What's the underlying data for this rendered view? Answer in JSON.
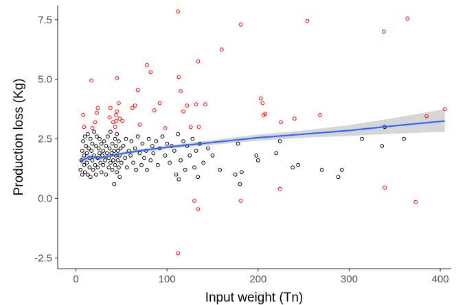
{
  "chart_data": {
    "type": "scatter",
    "title": "",
    "xlabel": "Input weight (Tn)",
    "ylabel": "Production loss (Kg)",
    "xlim": [
      -20,
      412
    ],
    "ylim": [
      -2.95,
      8.1
    ],
    "x_ticks": [
      0,
      100,
      200,
      300,
      400
    ],
    "x_tick_labels": [
      "0",
      "100",
      "200",
      "300",
      "400"
    ],
    "y_ticks": [
      -2.5,
      0.0,
      2.5,
      5.0,
      7.5
    ],
    "y_tick_labels": [
      "-2.5",
      "0.0",
      "2.5",
      "5.0",
      "7.5"
    ],
    "grid": false,
    "legend": "none",
    "colors": {
      "normal_points": "#000000",
      "outlier_points": "#ff0000",
      "trend_line": "#3366ff",
      "confidence_band": "#c8c8c8",
      "axis": "#333333"
    },
    "series": [
      {
        "role": "normal",
        "points": [
          [
            5,
            1.2
          ],
          [
            6,
            1.6
          ],
          [
            7,
            2.0
          ],
          [
            7,
            1.0
          ],
          [
            8,
            2.4
          ],
          [
            9,
            1.4
          ],
          [
            9,
            1.8
          ],
          [
            10,
            2.6
          ],
          [
            10,
            1.1
          ],
          [
            11,
            2.2
          ],
          [
            12,
            1.5
          ],
          [
            12,
            1.9
          ],
          [
            13,
            2.7
          ],
          [
            13,
            1.0
          ],
          [
            14,
            2.1
          ],
          [
            15,
            1.3
          ],
          [
            15,
            1.7
          ],
          [
            16,
            2.5
          ],
          [
            16,
            0.9
          ],
          [
            17,
            2.0
          ],
          [
            18,
            1.6
          ],
          [
            18,
            2.3
          ],
          [
            19,
            1.2
          ],
          [
            20,
            2.8
          ],
          [
            20,
            1.8
          ],
          [
            21,
            1.4
          ],
          [
            22,
            2.2
          ],
          [
            22,
            1.0
          ],
          [
            23,
            2.6
          ],
          [
            24,
            1.7
          ],
          [
            24,
            1.3
          ],
          [
            25,
            2.1
          ],
          [
            26,
            1.9
          ],
          [
            26,
            2.5
          ],
          [
            27,
            1.5
          ],
          [
            28,
            2.3
          ],
          [
            28,
            1.1
          ],
          [
            29,
            1.8
          ],
          [
            30,
            2.0
          ],
          [
            30,
            1.4
          ],
          [
            31,
            2.4
          ],
          [
            32,
            1.6
          ],
          [
            33,
            2.2
          ],
          [
            33,
            1.0
          ],
          [
            34,
            1.9
          ],
          [
            35,
            2.6
          ],
          [
            36,
            1.3
          ],
          [
            36,
            1.7
          ],
          [
            37,
            2.1
          ],
          [
            38,
            1.5
          ],
          [
            38,
            2.8
          ],
          [
            39,
            1.9
          ],
          [
            40,
            1.2
          ],
          [
            40,
            2.3
          ],
          [
            41,
            1.6
          ],
          [
            42,
            2.0
          ],
          [
            42,
            0.6
          ],
          [
            43,
            2.5
          ],
          [
            43,
            1.4
          ],
          [
            44,
            1.8
          ],
          [
            44,
            2.2
          ],
          [
            45,
            1.1
          ],
          [
            45,
            2.7
          ],
          [
            46,
            1.6
          ],
          [
            46,
            2.0
          ],
          [
            47,
            1.3
          ],
          [
            47,
            2.4
          ],
          [
            48,
            1.8
          ],
          [
            48,
            0.9
          ],
          [
            49,
            2.1
          ],
          [
            50,
            1.5
          ],
          [
            52,
            2.2
          ],
          [
            54,
            1.7
          ],
          [
            55,
            2.5
          ],
          [
            56,
            1.3
          ],
          [
            58,
            2.0
          ],
          [
            60,
            1.8
          ],
          [
            61,
            2.4
          ],
          [
            63,
            1.5
          ],
          [
            65,
            2.1
          ],
          [
            66,
            1.2
          ],
          [
            68,
            2.6
          ],
          [
            70,
            1.9
          ],
          [
            72,
            1.4
          ],
          [
            73,
            2.3
          ],
          [
            75,
            1.7
          ],
          [
            77,
            2.0
          ],
          [
            78,
            1.2
          ],
          [
            80,
            2.5
          ],
          [
            82,
            1.6
          ],
          [
            84,
            2.2
          ],
          [
            85,
            1.9
          ],
          [
            88,
            2.4
          ],
          [
            90,
            1.4
          ],
          [
            92,
            2.1
          ],
          [
            95,
            2.6
          ],
          [
            98,
            1.8
          ],
          [
            100,
            2.3
          ],
          [
            103,
            1.5
          ],
          [
            105,
            2.2
          ],
          [
            108,
            2.0
          ],
          [
            110,
            1.0
          ],
          [
            112,
            2.7
          ],
          [
            113,
            0.8
          ],
          [
            115,
            1.6
          ],
          [
            118,
            2.4
          ],
          [
            120,
            1.2
          ],
          [
            122,
            2.2
          ],
          [
            125,
            1.8
          ],
          [
            128,
            2.5
          ],
          [
            130,
            1.3
          ],
          [
            132,
            2.0
          ],
          [
            134,
            0.9
          ],
          [
            136,
            2.3
          ],
          [
            140,
            1.5
          ],
          [
            145,
            2.1
          ],
          [
            150,
            1.8
          ],
          [
            158,
            1.2
          ],
          [
            175,
            1.0
          ],
          [
            178,
            2.3
          ],
          [
            180,
            0.6
          ],
          [
            182,
            1.1
          ],
          [
            198,
            1.8
          ],
          [
            200,
            1.6
          ],
          [
            220,
            1.9
          ],
          [
            224,
            2.4
          ],
          [
            238,
            1.3
          ],
          [
            244,
            1.4
          ],
          [
            270,
            1.2
          ],
          [
            288,
            0.9
          ],
          [
            292,
            1.2
          ],
          [
            314,
            2.5
          ],
          [
            336,
            2.2
          ],
          [
            339,
            3.0
          ],
          [
            360,
            2.5
          ]
        ]
      },
      {
        "role": "outlier",
        "points": [
          [
            8,
            3.5
          ],
          [
            9,
            3.0
          ],
          [
            17,
            4.95
          ],
          [
            18,
            2.95
          ],
          [
            21,
            3.2
          ],
          [
            23,
            3.6
          ],
          [
            24,
            3.8
          ],
          [
            37,
            3.4
          ],
          [
            38,
            3.8
          ],
          [
            41,
            3.2
          ],
          [
            43,
            3.0
          ],
          [
            44,
            3.25
          ],
          [
            44,
            3.5
          ],
          [
            45,
            3.65
          ],
          [
            45,
            5.05
          ],
          [
            47,
            4.0
          ],
          [
            48,
            3.35
          ],
          [
            51,
            3.25
          ],
          [
            62,
            3.8
          ],
          [
            65,
            3.9
          ],
          [
            68,
            4.55
          ],
          [
            70,
            3.1
          ],
          [
            78,
            5.6
          ],
          [
            82,
            5.3
          ],
          [
            86,
            3.7
          ],
          [
            92,
            4.0
          ],
          [
            98,
            2.95
          ],
          [
            112,
            7.85
          ],
          [
            113,
            5.1
          ],
          [
            115,
            4.5
          ],
          [
            118,
            3.65
          ],
          [
            122,
            3.9
          ],
          [
            126,
            3.0
          ],
          [
            132,
            3.95
          ],
          [
            134,
            5.75
          ],
          [
            135,
            3.0
          ],
          [
            142,
            3.95
          ],
          [
            160,
            6.25
          ],
          [
            181,
            7.3
          ],
          [
            203,
            4.2
          ],
          [
            205,
            4.0
          ],
          [
            206,
            3.5
          ],
          [
            208,
            3.55
          ],
          [
            225,
            3.2
          ],
          [
            240,
            3.35
          ],
          [
            254,
            7.45
          ],
          [
            268,
            3.5
          ],
          [
            130,
            -0.1
          ],
          [
            134,
            -0.45
          ],
          [
            181,
            -0.1
          ],
          [
            224,
            0.4
          ],
          [
            112,
            -2.3
          ],
          [
            338,
            7.0
          ],
          [
            339,
            0.45
          ],
          [
            364,
            7.55
          ],
          [
            373,
            -0.15
          ],
          [
            385,
            3.45
          ],
          [
            405,
            3.75
          ]
        ]
      }
    ],
    "trend": {
      "x": [
        5,
        10,
        15,
        20,
        25,
        30,
        40,
        50,
        70,
        100,
        150,
        200,
        250,
        300,
        350,
        405
      ],
      "y": [
        1.58,
        1.65,
        1.75,
        1.73,
        1.68,
        1.72,
        1.8,
        1.88,
        2.0,
        2.15,
        2.35,
        2.55,
        2.7,
        2.85,
        3.05,
        3.25
      ],
      "lower": [
        1.4,
        1.55,
        1.66,
        1.65,
        1.6,
        1.65,
        1.74,
        1.82,
        1.93,
        2.08,
        2.25,
        2.42,
        2.55,
        2.62,
        2.72,
        2.8
      ],
      "upper": [
        1.76,
        1.75,
        1.84,
        1.81,
        1.76,
        1.79,
        1.86,
        1.94,
        2.07,
        2.22,
        2.45,
        2.68,
        2.85,
        3.08,
        3.38,
        3.75
      ]
    }
  }
}
